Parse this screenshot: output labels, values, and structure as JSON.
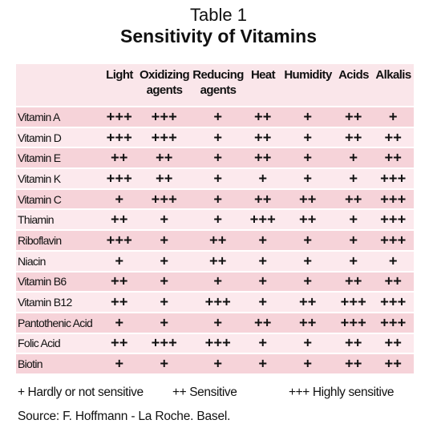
{
  "title": "Table 1",
  "subtitle": "Sensitivity of Vitamins",
  "columns": [
    "Light",
    "Oxidizing agents",
    "Reducing agents",
    "Heat",
    "Humidity",
    "Acids",
    "Alkalis"
  ],
  "rows": [
    {
      "name": "Vitamin A",
      "values": [
        "+++",
        "+++",
        "+",
        "++",
        "+",
        "++",
        "+"
      ]
    },
    {
      "name": "Vitamin D",
      "values": [
        "+++",
        "+++",
        "+",
        "++",
        "+",
        "++",
        "++"
      ]
    },
    {
      "name": "Vitamin E",
      "values": [
        "++",
        "++",
        "+",
        "++",
        "+",
        "+",
        "++"
      ]
    },
    {
      "name": "Vitamin K",
      "values": [
        "+++",
        "++",
        "+",
        "+",
        "+",
        "+",
        "+++"
      ]
    },
    {
      "name": "Vitamin C",
      "values": [
        "+",
        "+++",
        "+",
        "++",
        "++",
        "++",
        "+++"
      ]
    },
    {
      "name": "Thiamin",
      "values": [
        "++",
        "+",
        "+",
        "+++",
        "++",
        "+",
        "+++"
      ]
    },
    {
      "name": "Riboflavin",
      "values": [
        "+++",
        "+",
        "++",
        "+",
        "+",
        "+",
        "+++"
      ]
    },
    {
      "name": "Niacin",
      "values": [
        "+",
        "+",
        "++",
        "+",
        "+",
        "+",
        "+"
      ]
    },
    {
      "name": "Vitamin B6",
      "values": [
        "++",
        "+",
        "+",
        "+",
        "+",
        "++",
        "++"
      ]
    },
    {
      "name": "Vitamin B12",
      "values": [
        "++",
        "+",
        "+++",
        "+",
        "++",
        "+++",
        "+++"
      ]
    },
    {
      "name": "Pantothenic Acid",
      "values": [
        "+",
        "+",
        "+",
        "++",
        "++",
        "+++",
        "+++"
      ]
    },
    {
      "name": "Folic Acid",
      "values": [
        "++",
        "+++",
        "+++",
        "+",
        "+",
        "++",
        "++"
      ]
    },
    {
      "name": "Biotin",
      "values": [
        "+",
        "+",
        "+",
        "+",
        "+",
        "++",
        "++"
      ]
    }
  ],
  "legend": {
    "hardly": "+ Hardly or not sensitive",
    "sensitive": "++ Sensitive",
    "highly": "+++ Highly sensitive"
  },
  "source": "Source: F. Hoffmann - La Roche. Basel."
}
